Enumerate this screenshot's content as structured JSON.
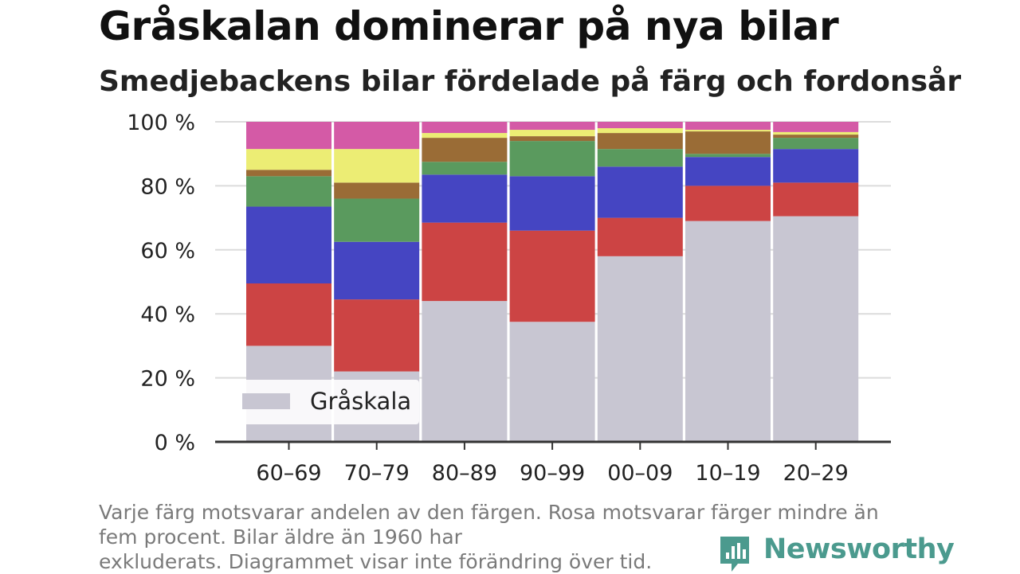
{
  "title": "Gråskalan dominerar på nya bilar",
  "subtitle": "Smedjebackens bilar fördelade på färg och fordonsår",
  "footnote": {
    "line1": "Varje färg motsvarar andelen av den färgen. Rosa motsvarar färger mindre än",
    "line2": "fem procent. Bilar äldre än 1960 har",
    "line3": "exkluderats. Diagrammet visar inte förändring över tid."
  },
  "brand": {
    "name": "Newsworthy",
    "color": "#4b9a8e"
  },
  "chart_data": {
    "type": "bar",
    "stacked": true,
    "categories": [
      "60–69",
      "70–79",
      "80–89",
      "90–99",
      "00–09",
      "10–19",
      "20–29"
    ],
    "y_ticks": [
      "0 %",
      "20 %",
      "40 %",
      "60 %",
      "80 %",
      "100 %"
    ],
    "ylim": [
      0,
      100
    ],
    "grid": true,
    "legend": {
      "position": "bottom-left",
      "entries": [
        "Gråskala"
      ]
    },
    "series": [
      {
        "name": "Gråskala",
        "color": "#c8c6d2",
        "values": [
          30,
          22,
          44,
          37.5,
          58,
          69,
          70.5
        ]
      },
      {
        "color": "#cc4444",
        "values": [
          19.5,
          22.5,
          24.5,
          28.5,
          12,
          11,
          10.5
        ]
      },
      {
        "color": "#4545c2",
        "values": [
          24,
          18,
          15,
          17,
          16,
          9,
          10.5
        ]
      },
      {
        "color": "#5a9a5e",
        "values": [
          9.5,
          13.5,
          4,
          11,
          5.5,
          1,
          3.5
        ]
      },
      {
        "color": "#9a6c36",
        "values": [
          2,
          5,
          7.5,
          1.5,
          5,
          7,
          1
        ]
      },
      {
        "color": "#eced74",
        "values": [
          6.5,
          10.5,
          1.5,
          2,
          1.5,
          0.5,
          0.8
        ]
      },
      {
        "color": "#d45aa6",
        "values": [
          8.5,
          8.5,
          3.5,
          2.5,
          2,
          2.5,
          3.2
        ]
      }
    ]
  }
}
